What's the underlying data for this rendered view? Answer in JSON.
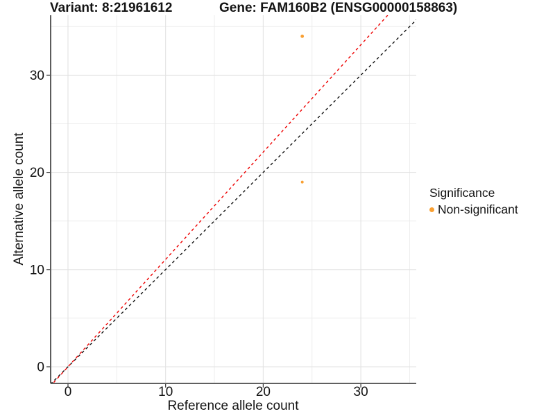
{
  "header": {
    "variant_title": "Variant: 8:21961612",
    "gene_title": "Gene: FAM160B2 (ENSG00000158863)"
  },
  "legend": {
    "title": "Significance",
    "items": [
      {
        "label": "Non-significant",
        "color": "#F9A033"
      }
    ]
  },
  "chart_data": {
    "type": "scatter",
    "title": "Variant: 8:21961612 | Gene: FAM160B2 (ENSG00000158863)",
    "xlabel": "Reference allele count",
    "ylabel": "Alternative allele count",
    "xlim": [
      -1.8,
      35.7
    ],
    "ylim": [
      -1.7,
      36.2
    ],
    "x_ticks": [
      0,
      10,
      20,
      30
    ],
    "x_minor_ticks": [
      5,
      15,
      25,
      35
    ],
    "y_ticks": [
      0,
      10,
      20,
      30
    ],
    "y_minor_ticks": [
      5,
      15,
      25,
      35
    ],
    "grid": "major+minor",
    "legend_position": "right",
    "series": [
      {
        "name": "Non-significant",
        "color": "#F9A033",
        "points": [
          {
            "x": 24,
            "y": 34
          },
          {
            "x": 24,
            "y": 19
          }
        ],
        "point_radius_px": [
          2.4,
          2.0
        ]
      }
    ],
    "ablines": [
      {
        "name": "identity-line",
        "slope": 1,
        "intercept": 0,
        "color": "#111111",
        "style": "dashed"
      },
      {
        "name": "allelic-ratio-line",
        "slope": 1.104,
        "intercept": 0,
        "color": "#EE0000",
        "style": "dashed"
      }
    ]
  },
  "colors": {
    "grid_major": "#E2E2E2",
    "grid_minor": "#EDEDED",
    "axis_line": "#4A4A4A",
    "tick_mark": "#333333",
    "text": "#141414"
  }
}
